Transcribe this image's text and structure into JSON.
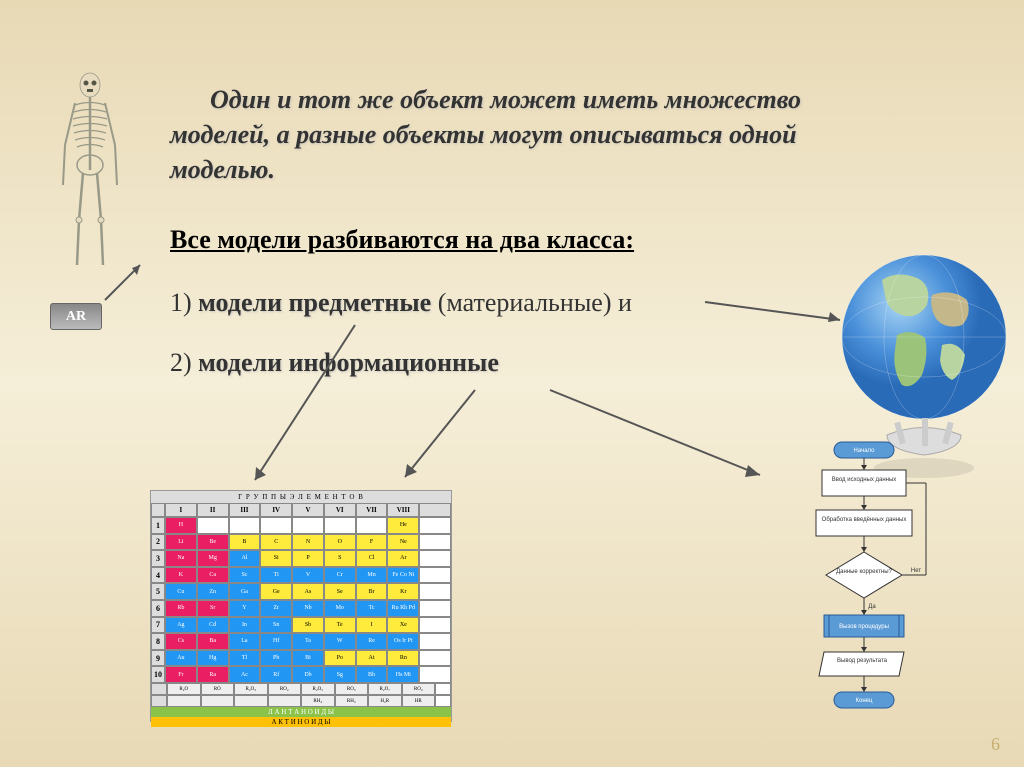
{
  "intro": "Один и тот же объект может иметь множество моделей, а разные объекты могут описываться одной моделью.",
  "subtitle": "Все модели разбиваются на два класса:",
  "item1_num": "1) ",
  "item1_bold": "модели предметные",
  "item1_rest": " (материальные) и",
  "item2_num": "2) ",
  "item2_bold": "модели информационные",
  "page_number": "6",
  "ar_label": "AR",
  "ptable": {
    "header_title": "Г Р У П П Ы   Э Л Е М Е Н Т О В",
    "cols": [
      "I",
      "II",
      "III",
      "IV",
      "V",
      "VI",
      "VII",
      "VIII"
    ],
    "rows_n": [
      "1",
      "2",
      "3",
      "4",
      "5",
      "6",
      "7",
      "8",
      "9",
      "10"
    ],
    "lanth_label": "Л А Н Т А Н О И Д Ы",
    "act_label": "А К Т И Н О И Д Ы",
    "oxides": [
      "R₂O",
      "RO",
      "R₂O₃",
      "RO₂",
      "R₂O₅",
      "RO₃",
      "R₂O₇",
      "RO₄"
    ],
    "hydrides": [
      "RH₄",
      "RH₃",
      "H₂R",
      "HR"
    ],
    "elements": {
      "r1": [
        "H",
        "",
        "",
        "",
        "",
        "",
        "",
        "He"
      ],
      "r2": [
        "Li",
        "Be",
        "B",
        "C",
        "N",
        "O",
        "F",
        "Ne"
      ],
      "r3": [
        "Na",
        "Mg",
        "Al",
        "Si",
        "P",
        "S",
        "Cl",
        "Ar"
      ],
      "r4": [
        "K",
        "Ca",
        "Sc",
        "Ti",
        "V",
        "Cr",
        "Mn",
        "Fe Co Ni"
      ],
      "r5": [
        "Cu",
        "Zn",
        "Ga",
        "Ge",
        "As",
        "Se",
        "Br",
        "Kr"
      ],
      "r6": [
        "Rb",
        "Sr",
        "Y",
        "Zr",
        "Nb",
        "Mo",
        "Tc",
        "Ru Rh Pd"
      ],
      "r7": [
        "Ag",
        "Cd",
        "In",
        "Sn",
        "Sb",
        "Te",
        "I",
        "Xe"
      ],
      "r8": [
        "Cs",
        "Ba",
        "La",
        "Hf",
        "Ta",
        "W",
        "Re",
        "Os Ir Pt"
      ],
      "r9": [
        "Au",
        "Hg",
        "Tl",
        "Pb",
        "Bi",
        "Po",
        "At",
        "Rn"
      ],
      "r10": [
        "Fr",
        "Ra",
        "Ac",
        "Rf",
        "Db",
        "Sg",
        "Bh",
        "Hs Mt"
      ]
    }
  },
  "flowchart": {
    "nodes": [
      {
        "type": "terminator",
        "label": "Начало",
        "color": "#5b9bd5"
      },
      {
        "type": "process",
        "label": "Ввод исходных данных",
        "color": "#ffffff"
      },
      {
        "type": "process",
        "label": "Обработка введённых данных",
        "color": "#ffffff"
      },
      {
        "type": "decision",
        "label": "Данные корректны?",
        "color": "#ffffff",
        "yes": "Да",
        "no": "Нет"
      },
      {
        "type": "process",
        "label": "Вызов процедуры",
        "color": "#5b9bd5"
      },
      {
        "type": "process",
        "label": "Вывод результата",
        "color": "#ffffff"
      },
      {
        "type": "terminator",
        "label": "Конец",
        "color": "#5b9bd5"
      }
    ]
  },
  "colors": {
    "bg_light": "#f5eed8",
    "bg_dark": "#e8d9b5",
    "accent_blue": "#5b9bd5",
    "globe_land": "#8fbc8f",
    "globe_ocean": "#4a90d9"
  }
}
